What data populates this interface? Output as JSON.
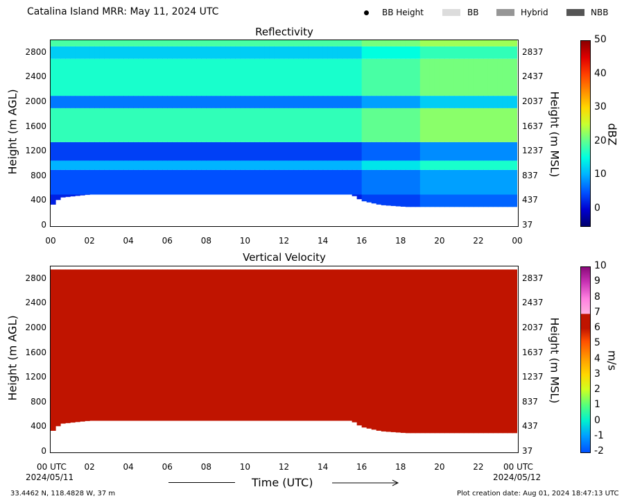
{
  "header": {
    "title": "Catalina Island MRR:  May 11, 2024 UTC",
    "legend": [
      {
        "label": "BB Height",
        "marker": "dot",
        "color": "#000000"
      },
      {
        "label": "BB",
        "marker": "swatch",
        "color": "#dcdcdc"
      },
      {
        "label": "Hybrid",
        "marker": "swatch",
        "color": "#969696"
      },
      {
        "label": "NBB",
        "marker": "swatch",
        "color": "#555555"
      }
    ]
  },
  "chart_data": [
    {
      "type": "heatmap",
      "title": "Reflectivity",
      "ylabel": "Height (m AGL)",
      "y2label": "Height (m MSL)",
      "yticks": [
        "0",
        "400",
        "800",
        "1200",
        "1600",
        "2000",
        "2400",
        "2800"
      ],
      "y2ticks": [
        "37",
        "437",
        "837",
        "1237",
        "1637",
        "2037",
        "2437",
        "2837"
      ],
      "xticks": [
        "00",
        "02",
        "04",
        "06",
        "08",
        "10",
        "12",
        "14",
        "16",
        "18",
        "20",
        "22",
        "00"
      ],
      "ylim": [
        0,
        3000
      ],
      "xlim_hours": [
        0,
        24
      ],
      "colorbar": {
        "label": "dBZ",
        "ticks": [
          "50",
          "40",
          "30",
          "20",
          "10",
          "0"
        ],
        "range": [
          -5,
          50
        ]
      },
      "bands": [
        {
          "y_from": 300,
          "y_to": 500,
          "dbz": 2
        },
        {
          "y_from": 500,
          "y_to": 900,
          "dbz": 5
        },
        {
          "y_from": 900,
          "y_to": 1050,
          "dbz": 10
        },
        {
          "y_from": 1050,
          "y_to": 1350,
          "dbz": 4
        },
        {
          "y_from": 1350,
          "y_to": 1900,
          "dbz": 15
        },
        {
          "y_from": 1900,
          "y_to": 2100,
          "dbz": 7
        },
        {
          "y_from": 2100,
          "y_to": 2700,
          "dbz": 14
        },
        {
          "y_from": 2700,
          "y_to": 2900,
          "dbz": 11
        },
        {
          "y_from": 2900,
          "y_to": 3000,
          "dbz": 16
        }
      ],
      "echo_base_m": [
        {
          "hour": 0,
          "base": 300
        },
        {
          "hour": 0.5,
          "base": 450
        },
        {
          "hour": 2,
          "base": 500
        },
        {
          "hour": 15.5,
          "base": 500
        },
        {
          "hour": 16,
          "base": 400
        },
        {
          "hour": 17,
          "base": 330
        },
        {
          "hour": 18.3,
          "base": 300
        },
        {
          "hour": 24,
          "base": 300
        }
      ]
    },
    {
      "type": "heatmap",
      "title": "Vertical Velocity",
      "ylabel": "Height (m AGL)",
      "y2label": "Height (m MSL)",
      "yticks": [
        "0",
        "400",
        "800",
        "1200",
        "1600",
        "2000",
        "2400",
        "2800"
      ],
      "y2ticks": [
        "37",
        "437",
        "837",
        "1237",
        "1637",
        "2037",
        "2437",
        "2837"
      ],
      "xticks": [
        "00 UTC",
        "02",
        "04",
        "06",
        "08",
        "10",
        "12",
        "14",
        "16",
        "18",
        "20",
        "22",
        "00 UTC"
      ],
      "ylim": [
        0,
        3000
      ],
      "xlim_hours": [
        0,
        24
      ],
      "colorbar": {
        "label": "m/s",
        "ticks": [
          "10",
          "9",
          "8",
          "7",
          "6",
          "5",
          "4",
          "3",
          "2",
          "1",
          "0",
          "-1",
          "-2"
        ],
        "range": [
          -2,
          10
        ]
      },
      "fill_value_ms": 6.5,
      "fill_color": "#c01400",
      "echo_base_m": [
        {
          "hour": 0,
          "base": 300
        },
        {
          "hour": 0.5,
          "base": 450
        },
        {
          "hour": 2,
          "base": 500
        },
        {
          "hour": 15.5,
          "base": 500
        },
        {
          "hour": 16,
          "base": 400
        },
        {
          "hour": 17,
          "base": 330
        },
        {
          "hour": 18.3,
          "base": 300
        },
        {
          "hour": 24,
          "base": 300
        }
      ]
    }
  ],
  "x_axis": {
    "label": "Time (UTC)",
    "start_date": "2024/05/11",
    "end_date": "2024/05/12"
  },
  "footer": {
    "location": "33.4462 N, 118.4828 W, 37 m",
    "creation": "Plot creation date: Aug 01, 2024 18:47:13 UTC"
  }
}
